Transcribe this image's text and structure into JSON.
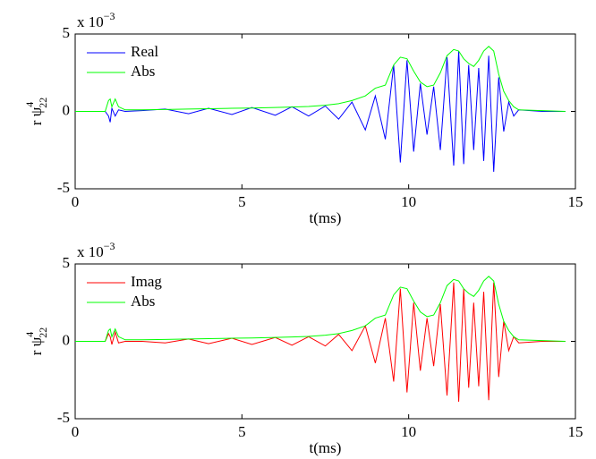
{
  "chart_data": [
    {
      "type": "line",
      "xlabel": "t(ms)",
      "ylabel": "r ψ",
      "ylabel_sup": "4",
      "ylabel_sub": "22",
      "axis_multiplier": "x 10",
      "axis_multiplier_exponent": "−3",
      "xlim": [
        0,
        15
      ],
      "xticks": [
        0,
        5,
        10,
        15
      ],
      "ylim": [
        -5,
        5
      ],
      "yticks": [
        -5,
        0,
        5
      ],
      "legend": "upper left",
      "x": [
        0,
        0.9,
        1.0,
        1.05,
        1.1,
        1.2,
        1.3,
        1.5,
        2.0,
        2.7,
        3.4,
        4.0,
        4.7,
        5.3,
        6.0,
        6.5,
        7.0,
        7.5,
        7.9,
        8.3,
        8.7,
        9.0,
        9.3,
        9.55,
        9.75,
        9.95,
        10.15,
        10.35,
        10.55,
        10.75,
        10.95,
        11.15,
        11.35,
        11.5,
        11.65,
        11.8,
        11.95,
        12.1,
        12.25,
        12.4,
        12.55,
        12.7,
        12.85,
        13.0,
        13.15,
        13.3,
        14.0,
        14.7
      ],
      "series": [
        {
          "name": "Real",
          "color": "#0000ff",
          "values": [
            0,
            0,
            -0.3,
            -0.7,
            0.2,
            -0.3,
            0.1,
            0,
            0.05,
            0.15,
            -0.15,
            0.2,
            -0.2,
            0.25,
            -0.25,
            0.3,
            -0.3,
            0.35,
            -0.5,
            0.6,
            -1.2,
            1.0,
            -1.8,
            3.0,
            -3.3,
            3.3,
            -2.6,
            1.8,
            -1.5,
            1.6,
            -2.5,
            3.5,
            -3.5,
            3.9,
            -3.4,
            3.0,
            -2.5,
            2.8,
            -3.2,
            3.6,
            -3.9,
            2.2,
            -1.3,
            0.6,
            -0.3,
            0.1,
            0,
            0
          ]
        },
        {
          "name": "Abs",
          "color": "#00ff00",
          "values": [
            0,
            0,
            0.7,
            0.8,
            0.3,
            0.8,
            0.3,
            0.1,
            0.1,
            0.12,
            0.15,
            0.17,
            0.2,
            0.22,
            0.25,
            0.28,
            0.32,
            0.4,
            0.5,
            0.7,
            1.0,
            1.5,
            1.7,
            3.0,
            3.5,
            3.4,
            2.6,
            1.9,
            1.6,
            1.7,
            2.5,
            3.6,
            4.0,
            3.9,
            3.4,
            3.1,
            2.9,
            3.3,
            3.9,
            4.2,
            3.9,
            2.4,
            1.3,
            0.7,
            0.3,
            0.1,
            0.05,
            0
          ]
        }
      ]
    },
    {
      "type": "line",
      "xlabel": "t(ms)",
      "ylabel": "r ψ",
      "ylabel_sup": "4",
      "ylabel_sub": "22",
      "axis_multiplier": "x 10",
      "axis_multiplier_exponent": "−3",
      "xlim": [
        0,
        15
      ],
      "xticks": [
        0,
        5,
        10,
        15
      ],
      "ylim": [
        -5,
        5
      ],
      "yticks": [
        -5,
        0,
        5
      ],
      "legend": "upper left",
      "x": [
        0,
        0.9,
        1.0,
        1.05,
        1.1,
        1.2,
        1.3,
        1.5,
        2.0,
        2.7,
        3.4,
        4.0,
        4.7,
        5.3,
        6.0,
        6.5,
        7.0,
        7.5,
        7.9,
        8.3,
        8.7,
        9.0,
        9.3,
        9.55,
        9.75,
        9.95,
        10.15,
        10.35,
        10.55,
        10.75,
        10.95,
        11.15,
        11.35,
        11.5,
        11.65,
        11.8,
        11.95,
        12.1,
        12.25,
        12.4,
        12.55,
        12.7,
        12.85,
        13.0,
        13.15,
        13.3,
        14.0,
        14.7
      ],
      "series": [
        {
          "name": "Imag",
          "color": "#ff0000",
          "values": [
            0,
            0,
            0.5,
            0.3,
            -0.2,
            0.6,
            -0.1,
            0,
            0,
            -0.1,
            0.15,
            -0.15,
            0.2,
            -0.2,
            0.25,
            -0.25,
            0.3,
            -0.3,
            0.45,
            -0.6,
            1.0,
            -1.4,
            1.5,
            -2.6,
            3.4,
            -3.3,
            2.5,
            -1.9,
            1.5,
            -1.6,
            2.4,
            -3.5,
            3.8,
            -3.9,
            3.4,
            -3.0,
            2.5,
            -2.9,
            3.2,
            -3.8,
            3.8,
            -2.3,
            1.3,
            -0.6,
            0.3,
            -0.1,
            0,
            0
          ]
        },
        {
          "name": "Abs",
          "color": "#00ff00",
          "values": [
            0,
            0,
            0.7,
            0.8,
            0.3,
            0.8,
            0.3,
            0.1,
            0.1,
            0.12,
            0.15,
            0.17,
            0.2,
            0.22,
            0.25,
            0.28,
            0.32,
            0.4,
            0.5,
            0.7,
            1.0,
            1.5,
            1.7,
            3.0,
            3.5,
            3.4,
            2.6,
            1.9,
            1.6,
            1.7,
            2.5,
            3.6,
            4.0,
            3.9,
            3.4,
            3.1,
            2.9,
            3.3,
            3.9,
            4.2,
            3.9,
            2.4,
            1.3,
            0.7,
            0.3,
            0.1,
            0.05,
            0
          ]
        }
      ]
    }
  ]
}
